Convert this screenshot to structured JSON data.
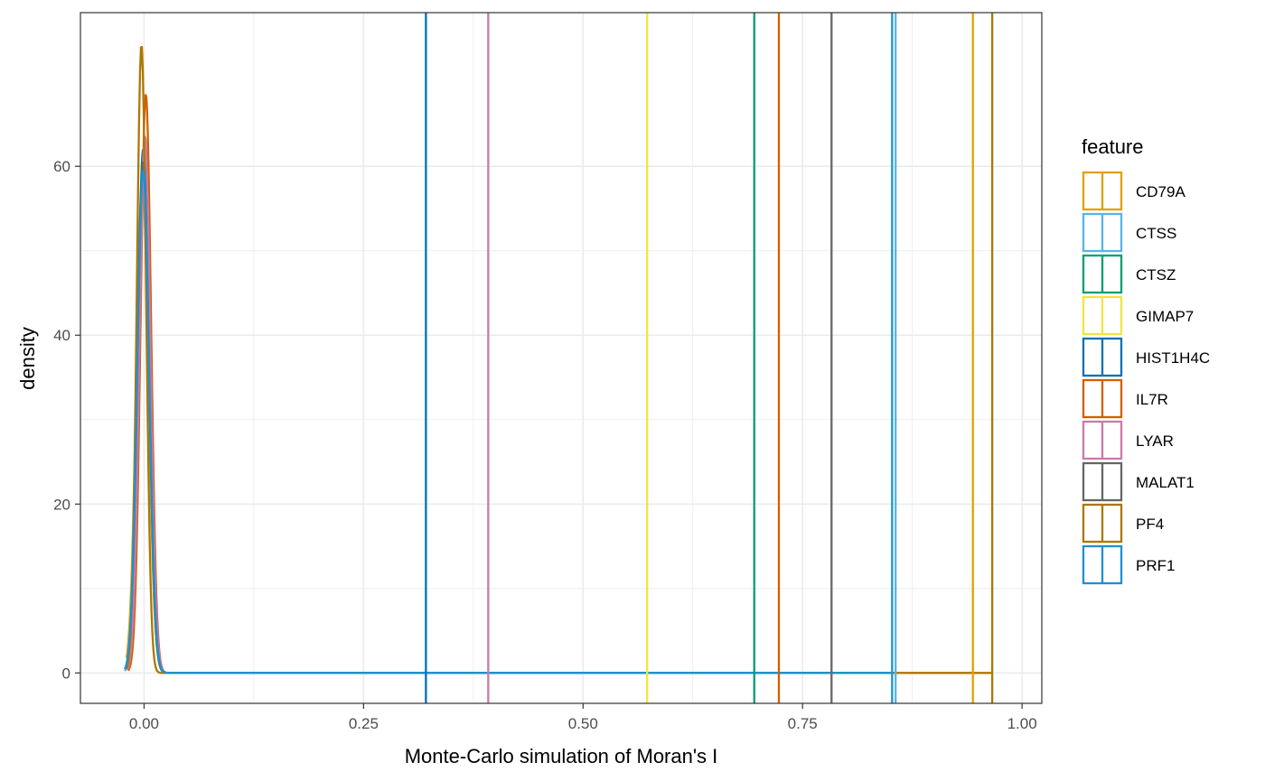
{
  "chart_data": {
    "type": "line",
    "title": "",
    "xlabel": "Monte-Carlo simulation of Moran's I",
    "ylabel": "density",
    "xlim": [
      -0.0725,
      1.0225
    ],
    "ylim": [
      -3.6,
      78.2
    ],
    "x_ticks": [
      0.0,
      0.25,
      0.5,
      0.75,
      1.0
    ],
    "x_tick_labels": [
      "0.00",
      "0.25",
      "0.50",
      "0.75",
      "1.00"
    ],
    "y_ticks": [
      0,
      20,
      40,
      60
    ],
    "y_tick_labels": [
      "0",
      "20",
      "40",
      "60"
    ],
    "grid": true,
    "legend_title": "feature",
    "legend_position": "right",
    "series": [
      {
        "name": "CD79A",
        "color": "#E69F00",
        "observed": 0.944,
        "peak_x": -0.002,
        "peak": 58.5,
        "sd": 0.0068,
        "min_x": -0.02,
        "max_x": 0.026
      },
      {
        "name": "CTSS",
        "color": "#56B4E9",
        "observed": 0.856,
        "peak_x": 0.0,
        "peak": 61.0,
        "sd": 0.0066,
        "min_x": -0.022,
        "max_x": 0.022
      },
      {
        "name": "CTSZ",
        "color": "#009E73",
        "observed": 0.695,
        "peak_x": -0.001,
        "peak": 60.0,
        "sd": 0.0066,
        "min_x": -0.02,
        "max_x": 0.022
      },
      {
        "name": "GIMAP7",
        "color": "#F0E442",
        "observed": 0.573,
        "peak_x": -0.001,
        "peak": 59.0,
        "sd": 0.0067,
        "min_x": -0.02,
        "max_x": 0.022
      },
      {
        "name": "HIST1H4C",
        "color": "#0072B2",
        "observed": 0.321,
        "peak_x": -0.001,
        "peak": 62.0,
        "sd": 0.0065,
        "min_x": -0.021,
        "max_x": 0.022
      },
      {
        "name": "IL7R",
        "color": "#D55E00",
        "observed": 0.723,
        "peak_x": 0.002,
        "peak": 68.5,
        "sd": 0.006,
        "min_x": -0.018,
        "max_x": 0.022
      },
      {
        "name": "LYAR",
        "color": "#CC79A7",
        "observed": 0.392,
        "peak_x": 0.001,
        "peak": 63.5,
        "sd": 0.0063,
        "min_x": -0.019,
        "max_x": 0.021
      },
      {
        "name": "MALAT1",
        "color": "#666666",
        "observed": 0.783,
        "peak_x": -0.001,
        "peak": 60.5,
        "sd": 0.0066,
        "min_x": -0.02,
        "max_x": 0.022
      },
      {
        "name": "PF4",
        "color": "#AD7700",
        "observed": 0.966,
        "peak_x": -0.003,
        "peak": 74.5,
        "sd": 0.0053,
        "min_x": -0.02,
        "max_x": 0.028
      },
      {
        "name": "PRF1",
        "color": "#1C91D4",
        "observed": 0.852,
        "peak_x": -0.001,
        "peak": 59.5,
        "sd": 0.0067,
        "min_x": -0.022,
        "max_x": 0.022
      }
    ]
  }
}
